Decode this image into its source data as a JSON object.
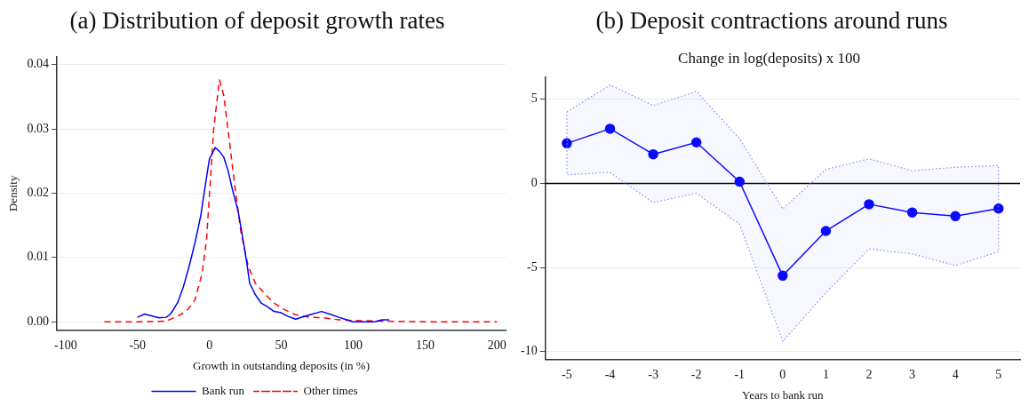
{
  "chart_data": [
    {
      "type": "line",
      "title": "(a) Distribution of deposit growth rates",
      "xlabel": "Growth in outstanding deposits (in %)",
      "ylabel": "Density",
      "xlim": [
        -106,
        206
      ],
      "ylim": [
        -0.0013,
        0.0412
      ],
      "xticks": [
        -100,
        -50,
        0,
        50,
        100,
        150,
        200
      ],
      "yticks": [
        {
          "value": 0,
          "label": "0.00"
        },
        {
          "value": 0.01,
          "label": "0.01"
        },
        {
          "value": 0.02,
          "label": "0.02"
        },
        {
          "value": 0.03,
          "label": "0.03"
        },
        {
          "value": 0.04,
          "label": "0.04"
        }
      ],
      "grid": "y",
      "legend": "bottom",
      "marker": "none",
      "series": [
        {
          "name": "Bank run",
          "color": "#0000ff",
          "line_style": "solid",
          "x": [
            -50,
            -45,
            -35,
            -30,
            -27,
            -22,
            -18,
            -14,
            -10,
            -6,
            -3,
            0,
            4,
            7,
            10,
            13,
            16,
            20,
            23,
            26,
            28,
            32,
            36,
            40,
            45,
            50,
            55,
            60,
            70,
            78,
            85,
            90,
            97,
            100,
            115,
            120,
            125
          ],
          "values": [
            0.0007,
            0.0012,
            0.0006,
            0.0007,
            0.0012,
            0.003,
            0.0055,
            0.0087,
            0.0123,
            0.0165,
            0.021,
            0.0253,
            0.0271,
            0.0265,
            0.0256,
            0.0235,
            0.0206,
            0.0172,
            0.0133,
            0.0092,
            0.006,
            0.0042,
            0.0029,
            0.0024,
            0.0016,
            0.0014,
            0.0008,
            0.0004,
            0.0011,
            0.0016,
            0.0011,
            0.0007,
            0.0002,
            0,
            0,
            0.0003,
            0.0003
          ]
        },
        {
          "name": "Other times",
          "color": "#ff0000",
          "line_style": "dashed",
          "x": [
            -73,
            -50,
            -30,
            -25,
            -20,
            -15,
            -10,
            -5,
            -2,
            0,
            3,
            7,
            10,
            14,
            18,
            22,
            27,
            32,
            40,
            45,
            52,
            60,
            70,
            80,
            90,
            100,
            120,
            150,
            200
          ],
          "values": [
            0,
            0,
            0.0001,
            0.0006,
            0.0011,
            0.0019,
            0.0034,
            0.0076,
            0.0128,
            0.0196,
            0.03,
            0.0376,
            0.0352,
            0.0279,
            0.0206,
            0.0139,
            0.0086,
            0.006,
            0.004,
            0.0029,
            0.0019,
            0.0011,
            0.0007,
            0.0006,
            0.0003,
            0.0002,
            0.0001,
            0,
            0
          ]
        }
      ]
    },
    {
      "type": "line",
      "title": "(b) Deposit contractions around runs",
      "subtitle": "Change in log(deposits) x 100",
      "xlabel": "Years to bank run",
      "xlim": [
        -5.5,
        5.5
      ],
      "ylim": [
        -10.47,
        6.34
      ],
      "xticks": [
        -5,
        -4,
        -3,
        -2,
        -1,
        0,
        1,
        2,
        3,
        4,
        5
      ],
      "yticks": [
        -10,
        -5,
        0,
        5
      ],
      "grid": "y",
      "marker": "circle",
      "ref_lines": [
        {
          "axis": "y",
          "value": 0,
          "color": "#000000"
        }
      ],
      "series": [
        {
          "color": "#0000ff",
          "line_style": "solid",
          "x": [
            -5,
            -4,
            -3,
            -2,
            -1,
            0,
            1,
            2,
            3,
            4,
            5
          ],
          "values": [
            2.38,
            3.25,
            1.73,
            2.44,
            0.1,
            -5.49,
            -2.83,
            -1.24,
            -1.73,
            -1.95,
            -1.5
          ],
          "upper": [
            4.25,
            5.85,
            4.63,
            5.47,
            2.66,
            -1.52,
            0.83,
            1.46,
            0.75,
            0.96,
            1.06
          ],
          "lower": [
            0.51,
            0.65,
            -1.14,
            -0.59,
            -2.42,
            -9.39,
            -6.5,
            -3.9,
            -4.19,
            -4.88,
            -4.07
          ]
        }
      ]
    }
  ]
}
